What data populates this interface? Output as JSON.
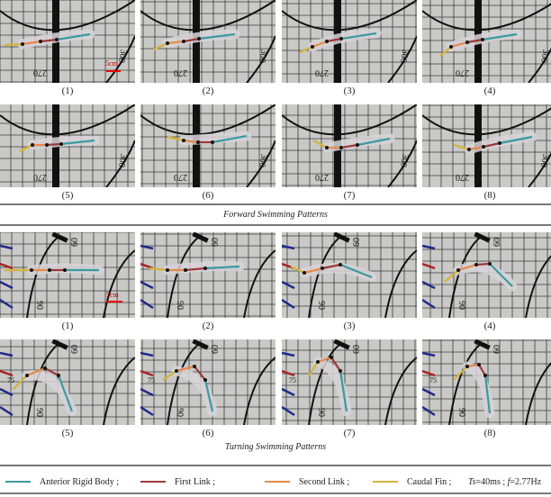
{
  "forward": {
    "caption": "Forward Swimming Patterns",
    "panels": [
      "(1)",
      "(2)",
      "(3)",
      "(4)",
      "(5)",
      "(6)",
      "(7)",
      "(8)"
    ],
    "tick_a": "270",
    "tick_b": "300",
    "scale": "5cm"
  },
  "turning": {
    "caption": "Turning Swimming Patterns",
    "panels": [
      "(1)",
      "(2)",
      "(3)",
      "(4)",
      "(5)",
      "(6)",
      "(7)",
      "(8)"
    ],
    "tick_a": "90",
    "tick_b": "60",
    "tick_c": "75",
    "scale": "5cm"
  },
  "legend": {
    "items": [
      {
        "label": "Anterior Rigid Body ;",
        "color": "#3a9aa0"
      },
      {
        "label": "First Link ;",
        "color": "#9b3a3a"
      },
      {
        "label": "Second Link ;",
        "color": "#e8894a"
      },
      {
        "label": "Caudal Fin ;",
        "color": "#d4b43a"
      }
    ],
    "ts_label": "Ts",
    "ts_value": "=40ms ;",
    "f_label": "f",
    "f_value": "=2.77Hz"
  }
}
